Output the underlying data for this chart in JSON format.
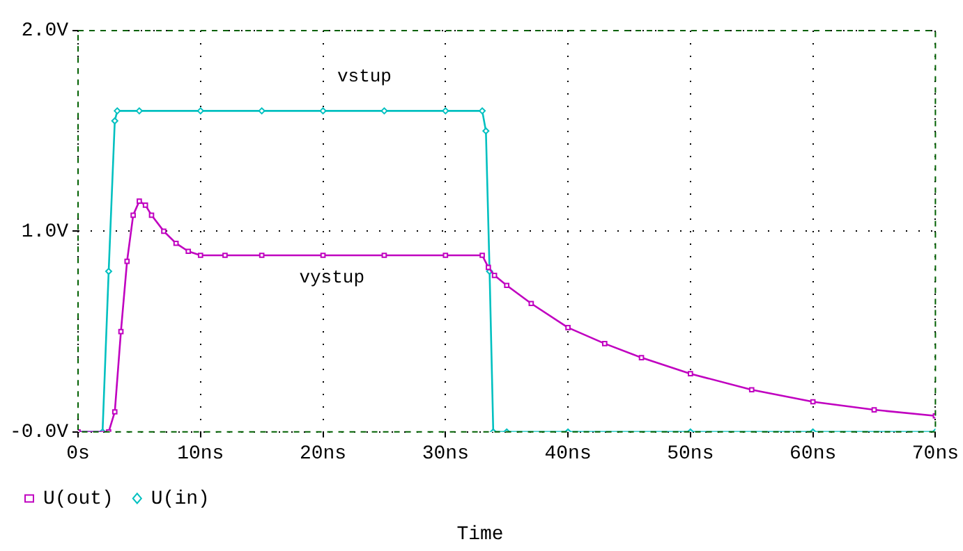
{
  "chart_data": {
    "type": "line",
    "xlabel": "Time",
    "x": [
      0,
      2,
      2.5,
      3,
      3.2,
      5,
      10,
      15,
      20,
      25,
      30,
      33,
      33.3,
      33.6,
      33.9,
      35,
      40,
      50,
      60,
      70
    ],
    "series": [
      {
        "name": "U(out)",
        "color": "#c000c0",
        "marker": "square",
        "x": [
          0,
          2.5,
          3,
          3.5,
          4,
          4.5,
          5,
          5.5,
          6,
          7,
          8,
          9,
          10,
          12,
          15,
          20,
          25,
          30,
          33,
          33.5,
          34,
          35,
          37,
          40,
          43,
          46,
          50,
          55,
          60,
          65,
          70
        ],
        "values": [
          0,
          0,
          0.1,
          0.5,
          0.85,
          1.08,
          1.15,
          1.13,
          1.08,
          1.0,
          0.94,
          0.9,
          0.88,
          0.88,
          0.88,
          0.88,
          0.88,
          0.88,
          0.88,
          0.82,
          0.78,
          0.73,
          0.64,
          0.52,
          0.44,
          0.37,
          0.29,
          0.21,
          0.15,
          0.11,
          0.08
        ]
      },
      {
        "name": "U(in)",
        "color": "#00c0c0",
        "marker": "diamond",
        "values": [
          0,
          0,
          0.8,
          1.55,
          1.6,
          1.6,
          1.6,
          1.6,
          1.6,
          1.6,
          1.6,
          1.6,
          1.5,
          0.8,
          0,
          0,
          0,
          0,
          0,
          0
        ]
      }
    ],
    "xlim": [
      0,
      70
    ],
    "xticks": [
      {
        "value": 0,
        "label": "0s"
      },
      {
        "value": 10,
        "label": "10ns"
      },
      {
        "value": 20,
        "label": "20ns"
      },
      {
        "value": 30,
        "label": "30ns"
      },
      {
        "value": 40,
        "label": "40ns"
      },
      {
        "value": 50,
        "label": "50ns"
      },
      {
        "value": 60,
        "label": "60ns"
      },
      {
        "value": 70,
        "label": "70ns"
      }
    ],
    "ylim": [
      0,
      2
    ],
    "yticks": [
      {
        "value": 0,
        "label": "-0.0V"
      },
      {
        "value": 1,
        "label": "1.0V"
      },
      {
        "value": 2,
        "label": "2.0V"
      }
    ],
    "annotations": [
      "vstup",
      "vystup"
    ],
    "grid": true,
    "legend": "bottom left",
    "line_style": "solid"
  }
}
